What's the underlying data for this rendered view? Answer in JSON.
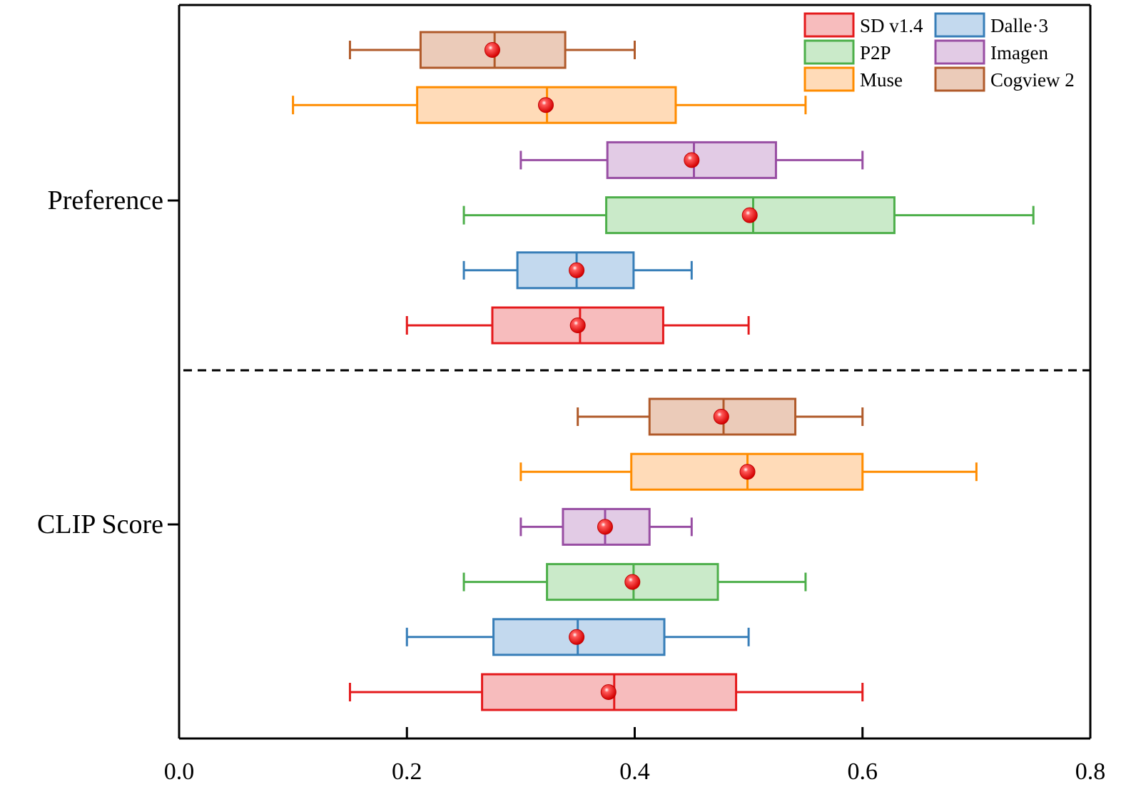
{
  "chart_data": {
    "type": "box",
    "orientation": "horizontal",
    "xlim": [
      0.0,
      0.8
    ],
    "xticks": [
      {
        "value": 0.0,
        "label": "0.0"
      },
      {
        "value": 0.2,
        "label": "0.2"
      },
      {
        "value": 0.4,
        "label": "0.4"
      },
      {
        "value": 0.6,
        "label": "0.6"
      },
      {
        "value": 0.8,
        "label": "0.8"
      }
    ],
    "xlabel": "",
    "ylabel": "",
    "title": "",
    "categories": [
      "Preference",
      "CLIP Score"
    ],
    "grid": false,
    "legend_position": "top-right",
    "series": [
      {
        "name": "SD v1.4",
        "color": "#e41a1c",
        "fill": "#f7bcbd",
        "boxes": [
          {
            "category": "Preference",
            "min": 0.2,
            "q1": 0.275,
            "median": 0.352,
            "q3": 0.425,
            "max": 0.5,
            "mean": 0.35
          },
          {
            "category": "CLIP Score",
            "min": 0.15,
            "q1": 0.266,
            "median": 0.382,
            "q3": 0.489,
            "max": 0.6,
            "mean": 0.377
          }
        ]
      },
      {
        "name": "Dalle·3",
        "color": "#377eb8",
        "fill": "#c3d9ee",
        "boxes": [
          {
            "category": "Preference",
            "min": 0.25,
            "q1": 0.297,
            "median": 0.349,
            "q3": 0.399,
            "max": 0.45,
            "mean": 0.349
          },
          {
            "category": "CLIP Score",
            "min": 0.2,
            "q1": 0.276,
            "median": 0.35,
            "q3": 0.426,
            "max": 0.5,
            "mean": 0.349
          }
        ]
      },
      {
        "name": "P2P",
        "color": "#4daf4a",
        "fill": "#caeac9",
        "boxes": [
          {
            "category": "Preference",
            "min": 0.25,
            "q1": 0.375,
            "median": 0.504,
            "q3": 0.628,
            "max": 0.75,
            "mean": 0.501
          },
          {
            "category": "CLIP Score",
            "min": 0.25,
            "q1": 0.323,
            "median": 0.399,
            "q3": 0.473,
            "max": 0.55,
            "mean": 0.398
          }
        ]
      },
      {
        "name": "Imagen",
        "color": "#984ea3",
        "fill": "#e2cbe5",
        "boxes": [
          {
            "category": "Preference",
            "min": 0.3,
            "q1": 0.376,
            "median": 0.452,
            "q3": 0.524,
            "max": 0.6,
            "mean": 0.45
          },
          {
            "category": "CLIP Score",
            "min": 0.3,
            "q1": 0.337,
            "median": 0.374,
            "q3": 0.413,
            "max": 0.45,
            "mean": 0.374
          }
        ]
      },
      {
        "name": "Muse",
        "color": "#ff8c00",
        "fill": "#ffdbb8",
        "boxes": [
          {
            "category": "Preference",
            "min": 0.1,
            "q1": 0.209,
            "median": 0.323,
            "q3": 0.436,
            "max": 0.55,
            "mean": 0.322
          },
          {
            "category": "CLIP Score",
            "min": 0.3,
            "q1": 0.397,
            "median": 0.499,
            "q3": 0.6,
            "max": 0.7,
            "mean": 0.499
          }
        ]
      },
      {
        "name": "Cogview 2",
        "color": "#b05a2a",
        "fill": "#ebcbb9",
        "boxes": [
          {
            "category": "Preference",
            "min": 0.15,
            "q1": 0.212,
            "median": 0.277,
            "q3": 0.339,
            "max": 0.4,
            "mean": 0.275
          },
          {
            "category": "CLIP Score",
            "min": 0.35,
            "q1": 0.413,
            "median": 0.478,
            "q3": 0.541,
            "max": 0.6,
            "mean": 0.476
          }
        ]
      }
    ]
  }
}
